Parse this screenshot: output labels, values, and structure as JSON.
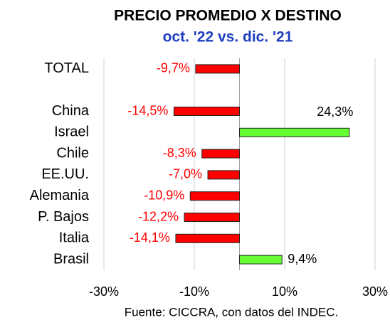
{
  "chart_data": {
    "type": "hbar",
    "title": "PRECIO PROMEDIO X DESTINO",
    "subtitle": "oct. '22 vs. dic. '21",
    "categories": [
      "TOTAL",
      null,
      "China",
      "Israel",
      "Chile",
      "EE.UU.",
      "Alemania",
      "P. Bajos",
      "Italia",
      "Brasil"
    ],
    "values": [
      -9.7,
      null,
      -14.5,
      24.3,
      -8.3,
      -7.0,
      -10.9,
      -12.2,
      -14.1,
      9.4
    ],
    "value_labels": [
      "-9,7%",
      null,
      "-14,5%",
      "24,3%",
      "-8,3%",
      "-7,0%",
      "-10,9%",
      "-12,2%",
      "-14,1%",
      "9,4%"
    ],
    "colors": [
      "#ff0000",
      null,
      "#ff0000",
      "#66ff33",
      "#ff0000",
      "#ff0000",
      "#ff0000",
      "#ff0000",
      "#ff0000",
      "#66ff33"
    ],
    "xlim": [
      -30,
      30
    ],
    "xticks": [
      {
        "value": -30,
        "label": "-30%"
      },
      {
        "value": -10,
        "label": "-10%"
      },
      {
        "value": 10,
        "label": "10%"
      },
      {
        "value": 30,
        "label": "30%"
      }
    ],
    "grid": true,
    "source": "Fuente: CICCRA, con datos del INDEC."
  }
}
